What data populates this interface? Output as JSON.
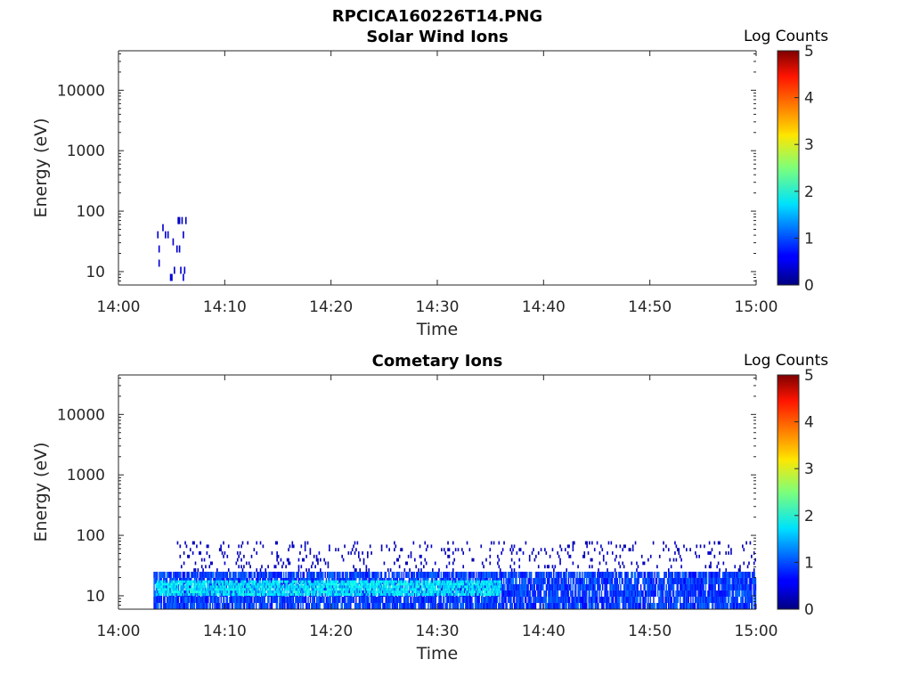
{
  "figure_title": "RPCICA160226T14.PNG",
  "chart_data": [
    {
      "type": "heatmap",
      "title": "Solar Wind Ions",
      "xlabel": "Time",
      "ylabel": "Energy (eV)",
      "x_ticks": [
        "14:00",
        "14:10",
        "14:20",
        "14:30",
        "14:40",
        "14:50",
        "15:00"
      ],
      "y_ticks": [
        "10",
        "100",
        "1000",
        "10000"
      ],
      "y_scale": "log",
      "xlim": [
        "14:00",
        "15:00"
      ],
      "ylim": [
        6,
        45000
      ],
      "colorbar": {
        "label": "Log Counts",
        "min": 0,
        "max": 5,
        "ticks": [
          "0",
          "1",
          "2",
          "3",
          "4",
          "5"
        ],
        "colormap": "jet"
      },
      "activity": [
        {
          "t_start_min": 3.4,
          "t_end_min": 6.3,
          "e_low_eV": 7,
          "e_high_eV": 80,
          "log_counts": 0.3,
          "density": "sparse"
        }
      ]
    },
    {
      "type": "heatmap",
      "title": "Cometary Ions",
      "xlabel": "Time",
      "ylabel": "Energy (eV)",
      "x_ticks": [
        "14:00",
        "14:10",
        "14:20",
        "14:30",
        "14:40",
        "14:50",
        "15:00"
      ],
      "y_ticks": [
        "10",
        "100",
        "1000",
        "10000"
      ],
      "y_scale": "log",
      "xlim": [
        "14:00",
        "15:00"
      ],
      "ylim": [
        6,
        45000
      ],
      "colorbar": {
        "label": "Log Counts",
        "min": 0,
        "max": 5,
        "ticks": [
          "0",
          "1",
          "2",
          "3",
          "4",
          "5"
        ],
        "colormap": "jet"
      },
      "activity": [
        {
          "t_start_min": 3.3,
          "t_end_min": 60.6,
          "e_low_eV": 6,
          "e_high_eV": 25,
          "log_counts": 1.0,
          "density": "dense"
        },
        {
          "t_start_min": 3.5,
          "t_end_min": 36.0,
          "e_low_eV": 10,
          "e_high_eV": 18,
          "log_counts": 1.8,
          "density": "core"
        },
        {
          "t_start_min": 5.5,
          "t_end_min": 60.6,
          "e_low_eV": 25,
          "e_high_eV": 80,
          "log_counts": 0.2,
          "density": "sparse"
        }
      ]
    }
  ]
}
